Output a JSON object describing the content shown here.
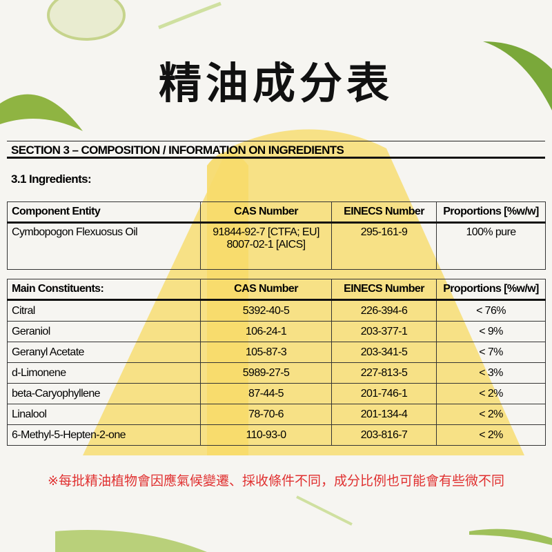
{
  "title": "精油成分表",
  "section_heading": "SECTION 3 – COMPOSITION / INFORMATION ON INGREDIENTS",
  "subheading": "3.1 Ingredients:",
  "table1": {
    "header": [
      "Component Entity",
      "CAS Number",
      "EINECS Number",
      "Proportions [%w/w]"
    ],
    "rows": [
      [
        "Cymbopogon Flexuosus Oil",
        [
          "91844-92-7 [CTFA; EU]",
          "8007-02-1 [AICS]"
        ],
        "295-161-9",
        "100% pure"
      ]
    ]
  },
  "table2": {
    "header": [
      "Main Constituents:",
      "CAS Number",
      "EINECS Number",
      "Proportions [%w/w]"
    ],
    "rows": [
      [
        "Citral",
        "5392-40-5",
        "226-394-6",
        "< 76%"
      ],
      [
        "Geraniol",
        "106-24-1",
        "203-377-1",
        "< 9%"
      ],
      [
        "Geranyl Acetate",
        "105-87-3",
        "203-341-5",
        "< 7%"
      ],
      [
        "d-Limonene",
        "5989-27-5",
        "227-813-5",
        "< 3%"
      ],
      [
        "beta-Caryophyllene",
        "87-44-5",
        "201-746-1",
        "< 2%"
      ],
      [
        "Linalool",
        "78-70-6",
        "201-134-4",
        "< 2%"
      ],
      [
        "6-Methyl-5-Hepten-2-one",
        "110-93-0",
        "203-816-7",
        "< 2%"
      ]
    ]
  },
  "note": "※每批精油植物會因應氣候變遷、採收條件不同，成分比例也可能會有些微不同"
}
